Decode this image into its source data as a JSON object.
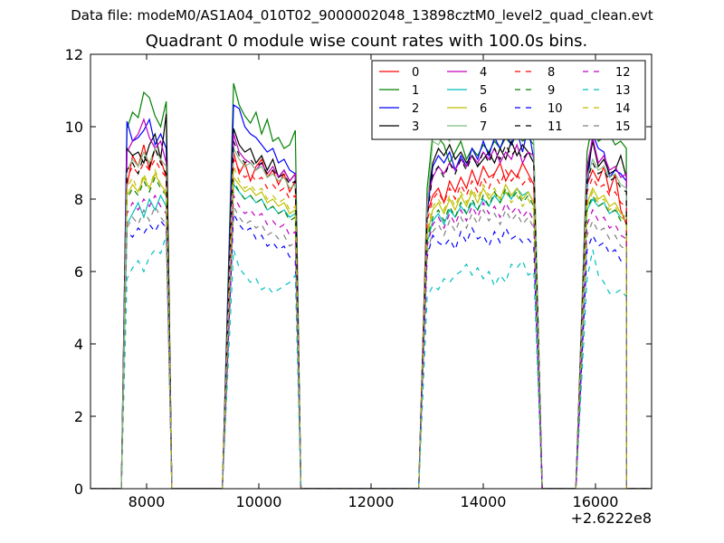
{
  "suptitle": "Data file: modeM0/AS1A04_010T02_9000002048_13898cztM0_level2_quad_clean.evt",
  "chart_data": {
    "type": "line",
    "title": "Quadrant 0 module wise count rates with 100.0s bins.",
    "xlabel": "",
    "ylabel": "",
    "x_offset_label": "+2.6222e8",
    "xlim": [
      7000,
      17000
    ],
    "ylim": [
      0,
      12
    ],
    "xticks": [
      8000,
      10000,
      12000,
      14000,
      16000
    ],
    "yticks": [
      0,
      2,
      4,
      6,
      8,
      10,
      12
    ],
    "legend_location": "top-right",
    "legend_columns": 4,
    "segments": [
      {
        "start": 7650,
        "n": 8
      },
      {
        "start": 9550,
        "n": 12
      },
      {
        "start": 13000,
        "n": 20
      },
      {
        "start": 15850,
        "n": 8
      }
    ],
    "edges": [
      [
        7550,
        8450
      ],
      [
        9350,
        10750
      ],
      [
        12850,
        15050
      ],
      [
        15650,
        16550
      ]
    ],
    "series": [
      {
        "name": "0",
        "color": "#ff0000",
        "dashed": false,
        "values": [
          [
            8.35,
            9.2,
            8.9,
            9.5,
            8.8,
            9.4,
            9.1,
            8.6
          ],
          [
            9.3,
            8.7,
            9.0,
            8.5,
            8.9,
            9.1,
            8.6,
            8.8,
            8.4,
            8.7,
            8.2,
            8.5
          ],
          [
            7.6,
            8.1,
            8.3,
            7.9,
            8.5,
            8.2,
            8.6,
            8.3,
            8.8,
            8.4,
            8.9,
            8.6,
            8.7,
            9.0,
            8.5,
            8.8,
            8.6,
            9.0,
            8.7,
            8.4
          ],
          [
            8.4,
            8.8,
            8.5,
            8.9,
            8.2,
            8.7,
            7.7,
            7.3
          ]
        ]
      },
      {
        "name": "1",
        "color": "#008000",
        "dashed": false,
        "values": [
          [
            9.95,
            10.4,
            10.25,
            10.95,
            10.8,
            10.3,
            10.0,
            10.7
          ],
          [
            11.2,
            10.6,
            10.3,
            10.1,
            10.4,
            9.8,
            10.2,
            9.6,
            9.7,
            9.4,
            9.5,
            9.9
          ],
          [
            8.3,
            9.8,
            9.7,
            9.5,
            9.0,
            9.3,
            9.6,
            9.1,
            9.4,
            9.2,
            9.5,
            9.3,
            9.6,
            9.4,
            9.7,
            9.5,
            9.8,
            9.6,
            9.7,
            9.5
          ],
          [
            9.3,
            10.15,
            9.6,
            9.7,
            9.8,
            9.5,
            9.6,
            9.4
          ]
        ]
      },
      {
        "name": "2",
        "color": "#0000ff",
        "dashed": false,
        "values": [
          [
            10.15,
            9.6,
            9.7,
            9.9,
            10.2,
            9.5,
            9.8,
            9.4
          ],
          [
            10.6,
            10.5,
            10.0,
            9.8,
            9.7,
            9.5,
            9.3,
            9.4,
            9.0,
            9.1,
            8.8,
            8.7
          ],
          [
            7.6,
            8.9,
            9.2,
            9.0,
            9.3,
            8.8,
            9.2,
            8.9,
            9.4,
            9.1,
            9.6,
            9.2,
            9.7,
            9.4,
            9.8,
            9.5,
            9.9,
            9.3,
            10.0,
            9.1
          ],
          [
            8.3,
            9.8,
            9.4,
            9.3,
            8.6,
            8.8,
            8.7,
            8.5
          ]
        ]
      },
      {
        "name": "3",
        "color": "#000000",
        "dashed": false,
        "values": [
          [
            9.4,
            9.2,
            9.3,
            9.0,
            9.5,
            9.8,
            9.1,
            10.35
          ],
          [
            9.95,
            9.5,
            9.3,
            9.4,
            9.0,
            9.2,
            8.8,
            9.1,
            8.6,
            8.8,
            8.5,
            8.7
          ],
          [
            7.9,
            9.0,
            9.4,
            9.2,
            9.5,
            9.1,
            9.3,
            9.0,
            9.2,
            8.9,
            9.1,
            9.3,
            9.0,
            9.4,
            9.1,
            9.6,
            9.2,
            9.5,
            9.3,
            9.0
          ],
          [
            8.7,
            9.6,
            8.9,
            9.1,
            8.7,
            8.8,
            9.2,
            8.6
          ]
        ]
      },
      {
        "name": "4",
        "color": "#bf00bf",
        "dashed": false,
        "values": [
          [
            9.3,
            9.6,
            9.8,
            10.2,
            9.7,
            9.4,
            9.6,
            9.0
          ],
          [
            9.8,
            9.3,
            9.1,
            9.0,
            8.8,
            9.0,
            8.7,
            8.9,
            8.6,
            8.8,
            8.5,
            8.7
          ],
          [
            8.0,
            8.6,
            8.9,
            8.7,
            9.0,
            8.8,
            9.1,
            8.9,
            9.2,
            9.0,
            9.3,
            9.1,
            9.4,
            9.0,
            9.3,
            9.1,
            9.5,
            9.0,
            9.3,
            9.2
          ],
          [
            8.9,
            9.7,
            9.0,
            9.2,
            8.8,
            8.9,
            8.6,
            8.7
          ]
        ]
      },
      {
        "name": "5",
        "color": "#00bfbf",
        "dashed": false,
        "values": [
          [
            7.3,
            7.6,
            7.9,
            7.5,
            8.0,
            7.7,
            8.1,
            7.8
          ],
          [
            8.4,
            8.2,
            8.0,
            8.1,
            7.9,
            8.0,
            7.7,
            7.8,
            7.6,
            7.7,
            7.5,
            7.6
          ],
          [
            6.8,
            7.4,
            7.6,
            7.3,
            7.7,
            7.5,
            7.8,
            7.6,
            7.9,
            7.7,
            8.0,
            7.8,
            8.1,
            7.9,
            8.2,
            8.0,
            8.3,
            8.1,
            8.2,
            7.9
          ],
          [
            7.7,
            8.0,
            7.8,
            7.9,
            7.6,
            7.7,
            7.5,
            7.4
          ]
        ]
      },
      {
        "name": "6",
        "color": "#bfbf00",
        "dashed": false,
        "values": [
          [
            8.1,
            8.4,
            8.2,
            8.6,
            8.3,
            8.7,
            8.4,
            8.2
          ],
          [
            8.6,
            8.4,
            8.2,
            8.3,
            8.1,
            8.2,
            7.9,
            8.0,
            7.8,
            7.9,
            7.6,
            7.7
          ],
          [
            7.0,
            7.7,
            7.9,
            7.6,
            8.0,
            7.7,
            8.1,
            7.8,
            8.2,
            7.9,
            8.3,
            8.0,
            8.2,
            8.0,
            8.4,
            8.1,
            8.3,
            8.0,
            8.2,
            7.9
          ],
          [
            7.9,
            8.3,
            8.0,
            8.1,
            7.8,
            7.9,
            7.6,
            7.5
          ]
        ]
      },
      {
        "name": "7",
        "color": "#7fbf7f",
        "dashed": false,
        "values": [
          [
            8.8,
            9.1,
            8.9,
            9.3,
            9.0,
            9.4,
            9.1,
            8.9
          ],
          [
            9.4,
            9.1,
            8.9,
            9.0,
            8.8,
            8.9,
            8.6,
            8.7,
            8.5,
            8.6,
            8.3,
            8.4
          ],
          [
            7.8,
            9.6,
            9.5,
            9.8,
            9.6,
            10.0,
            9.7,
            10.3,
            9.8,
            10.1,
            9.9,
            10.5,
            10.0,
            10.2,
            10.3,
            11.2,
            10.1,
            10.6,
            9.9,
            9.6
          ],
          [
            8.6,
            9.1,
            8.8,
            8.9,
            8.6,
            8.7,
            8.4,
            8.3
          ]
        ]
      },
      {
        "name": "8",
        "color": "#ff0000",
        "dashed": true,
        "values": [
          [
            8.6,
            8.9,
            8.7,
            9.0,
            8.8,
            9.1,
            8.8,
            8.6
          ],
          [
            9.1,
            8.8,
            8.6,
            8.7,
            8.5,
            8.6,
            8.3,
            8.4,
            8.2,
            8.3,
            8.0,
            8.1
          ],
          [
            7.4,
            8.0,
            8.2,
            7.9,
            8.3,
            8.0,
            8.4,
            8.1,
            8.5,
            8.2,
            8.6,
            8.3,
            8.7,
            8.4,
            8.8,
            8.5,
            8.7,
            8.4,
            8.6,
            8.3
          ],
          [
            8.2,
            8.6,
            8.3,
            8.4,
            8.1,
            8.2,
            7.9,
            7.8
          ]
        ]
      },
      {
        "name": "9",
        "color": "#008000",
        "dashed": true,
        "values": [
          [
            8.0,
            8.3,
            8.1,
            8.5,
            8.2,
            8.6,
            8.3,
            8.1
          ],
          [
            8.5,
            8.2,
            8.0,
            8.1,
            7.9,
            8.0,
            7.7,
            7.8,
            7.6,
            7.7,
            7.4,
            7.5
          ],
          [
            6.9,
            7.5,
            7.7,
            7.4,
            7.8,
            7.5,
            7.9,
            7.6,
            8.0,
            7.7,
            8.1,
            7.8,
            8.2,
            7.9,
            8.3,
            8.0,
            8.2,
            7.9,
            8.1,
            7.8
          ],
          [
            7.7,
            8.1,
            7.8,
            7.9,
            7.6,
            7.7,
            7.4,
            7.3
          ]
        ]
      },
      {
        "name": "10",
        "color": "#0000ff",
        "dashed": true,
        "values": [
          [
            7.1,
            6.95,
            7.2,
            7.05,
            7.3,
            7.1,
            7.4,
            7.2
          ],
          [
            7.6,
            7.3,
            7.1,
            7.2,
            6.9,
            7.0,
            6.7,
            6.8,
            6.6,
            6.7,
            6.4,
            6.3
          ],
          [
            6.4,
            7.0,
            6.8,
            6.7,
            6.9,
            6.6,
            7.1,
            6.8,
            7.2,
            6.9,
            7.0,
            6.7,
            7.1,
            6.8,
            7.2,
            6.9,
            7.0,
            6.8,
            6.9,
            6.7
          ],
          [
            6.6,
            7.0,
            6.7,
            6.8,
            6.5,
            6.6,
            6.3,
            6.2
          ]
        ]
      },
      {
        "name": "11",
        "color": "#000000",
        "dashed": true,
        "values": [
          [
            8.8,
            9.0,
            8.7,
            9.2,
            8.9,
            9.4,
            9.0,
            8.7
          ],
          [
            9.6,
            9.2,
            9.0,
            9.1,
            8.9,
            9.0,
            8.7,
            8.8,
            8.6,
            8.7,
            8.4,
            8.5
          ],
          [
            7.5,
            8.7,
            8.9,
            8.6,
            9.0,
            8.7,
            9.1,
            8.8,
            9.2,
            8.9,
            9.3,
            9.0,
            9.4,
            9.1,
            9.5,
            9.2,
            9.4,
            9.1,
            9.3,
            9.0
          ],
          [
            8.5,
            9.0,
            8.7,
            8.8,
            8.5,
            8.6,
            8.3,
            8.2
          ]
        ]
      },
      {
        "name": "12",
        "color": "#bf00bf",
        "dashed": true,
        "values": [
          [
            7.6,
            7.9,
            7.7,
            8.0,
            7.8,
            8.1,
            7.8,
            7.6
          ],
          [
            8.1,
            7.8,
            7.6,
            7.7,
            7.5,
            7.6,
            7.3,
            7.4,
            7.2,
            7.3,
            7.0,
            7.1
          ],
          [
            6.7,
            7.3,
            7.5,
            7.2,
            7.6,
            7.3,
            7.7,
            7.4,
            7.8,
            7.5,
            7.9,
            7.6,
            7.8,
            7.5,
            7.9,
            7.6,
            7.8,
            7.5,
            7.7,
            7.4
          ],
          [
            7.3,
            7.7,
            7.4,
            7.5,
            7.2,
            7.3,
            7.0,
            6.9
          ]
        ]
      },
      {
        "name": "13",
        "color": "#00bfbf",
        "dashed": true,
        "values": [
          [
            5.8,
            6.1,
            6.3,
            6.0,
            6.4,
            6.6,
            6.5,
            7.0
          ],
          [
            6.6,
            6.1,
            5.9,
            5.7,
            5.8,
            5.5,
            5.6,
            5.4,
            5.5,
            5.6,
            5.7,
            5.9
          ],
          [
            5.3,
            5.6,
            5.5,
            5.8,
            5.7,
            5.9,
            6.0,
            6.2,
            5.9,
            6.1,
            5.8,
            6.0,
            5.6,
            5.9,
            5.7,
            6.2,
            6.1,
            6.3,
            5.9,
            6.0
          ],
          [
            5.8,
            6.6,
            5.9,
            5.7,
            5.4,
            5.4,
            5.5,
            5.3
          ]
        ]
      },
      {
        "name": "14",
        "color": "#bfbf00",
        "dashed": true,
        "values": [
          [
            8.3,
            8.6,
            8.2,
            8.7,
            8.3,
            8.8,
            8.4,
            8.1
          ],
          [
            8.9,
            8.5,
            8.3,
            8.4,
            8.2,
            8.3,
            8.0,
            8.1,
            7.9,
            8.0,
            7.7,
            7.8
          ],
          [
            7.1,
            7.8,
            8.0,
            7.7,
            8.1,
            7.8,
            8.2,
            7.9,
            8.3,
            8.0,
            8.4,
            8.1,
            8.3,
            8.0,
            8.2,
            7.9,
            8.1,
            7.8,
            8.0,
            7.7
          ],
          [
            7.8,
            8.2,
            7.9,
            8.0,
            7.7,
            7.8,
            7.5,
            7.4
          ]
        ]
      },
      {
        "name": "15",
        "color": "#808080",
        "dashed": true,
        "values": [
          [
            7.2,
            7.5,
            7.3,
            7.7,
            7.4,
            7.8,
            7.5,
            7.3
          ],
          [
            7.8,
            7.5,
            7.3,
            7.4,
            7.2,
            7.3,
            7.0,
            7.1,
            6.9,
            7.0,
            6.7,
            6.8
          ],
          [
            6.5,
            7.1,
            7.3,
            7.0,
            7.4,
            7.1,
            7.5,
            7.2,
            7.6,
            7.3,
            7.7,
            7.4,
            7.6,
            7.3,
            7.7,
            7.4,
            7.6,
            7.3,
            7.5,
            7.2
          ],
          [
            7.0,
            7.4,
            7.1,
            7.2,
            6.9,
            7.0,
            6.7,
            6.6
          ]
        ]
      }
    ]
  }
}
